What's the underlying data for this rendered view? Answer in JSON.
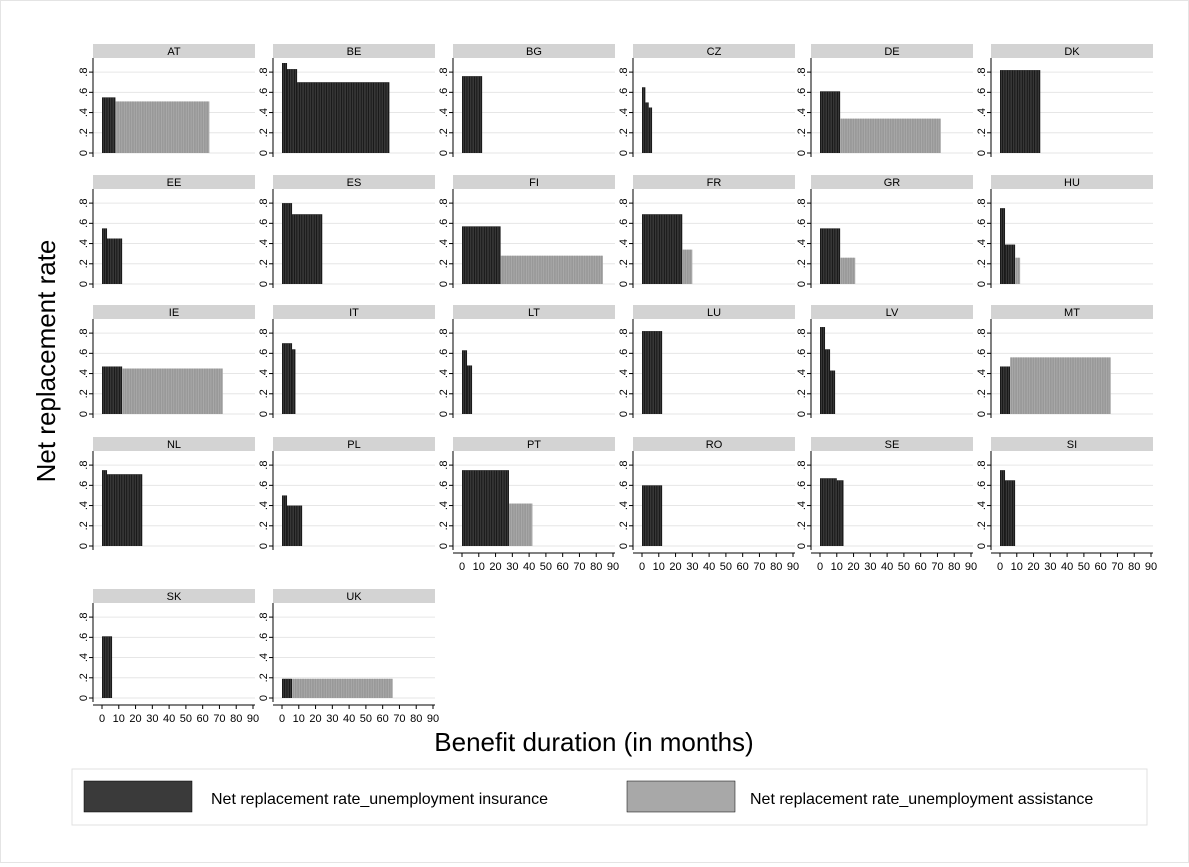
{
  "chart_data": {
    "type": "bar",
    "xlabel": "Benefit duration (in months)",
    "ylabel": "Net replacement rate",
    "xlim": [
      0,
      90
    ],
    "ylim": [
      0,
      0.9
    ],
    "x_ticks": [
      0,
      10,
      20,
      30,
      40,
      50,
      60,
      70,
      80,
      90
    ],
    "y_ticks": [
      0,
      0.2,
      0.4,
      0.6,
      0.8
    ],
    "y_tick_labels": [
      "0",
      ".2",
      ".4",
      ".6",
      ".8"
    ],
    "grid": true,
    "legend_position": "bottom",
    "series": [
      {
        "name": "Net replacement rate_unemployment insurance",
        "color": "#1a1a1a"
      },
      {
        "name": "Net replacement rate_unemployment assistance",
        "color": "#a8a8a8"
      }
    ],
    "panels": [
      {
        "label": "AT",
        "insurance": [
          [
            0,
            8,
            0.55
          ]
        ],
        "assistance": [
          [
            8,
            64,
            0.51
          ]
        ]
      },
      {
        "label": "BE",
        "insurance": [
          [
            0,
            3,
            0.89
          ],
          [
            3,
            9,
            0.83
          ],
          [
            9,
            64,
            0.7
          ]
        ],
        "assistance": []
      },
      {
        "label": "BG",
        "insurance": [
          [
            0,
            12,
            0.76
          ]
        ],
        "assistance": []
      },
      {
        "label": "CZ",
        "insurance": [
          [
            0,
            2,
            0.65
          ],
          [
            2,
            4,
            0.5
          ],
          [
            4,
            6,
            0.45
          ]
        ],
        "assistance": []
      },
      {
        "label": "DE",
        "insurance": [
          [
            0,
            12,
            0.61
          ]
        ],
        "assistance": [
          [
            12,
            72,
            0.34
          ]
        ]
      },
      {
        "label": "DK",
        "insurance": [
          [
            0,
            24,
            0.82
          ]
        ],
        "assistance": []
      },
      {
        "label": "EE",
        "insurance": [
          [
            0,
            3,
            0.55
          ],
          [
            3,
            12,
            0.45
          ]
        ],
        "assistance": []
      },
      {
        "label": "ES",
        "insurance": [
          [
            0,
            6,
            0.8
          ],
          [
            6,
            24,
            0.69
          ]
        ],
        "assistance": []
      },
      {
        "label": "FI",
        "insurance": [
          [
            0,
            23,
            0.57
          ]
        ],
        "assistance": [
          [
            23,
            84,
            0.28
          ]
        ]
      },
      {
        "label": "FR",
        "insurance": [
          [
            0,
            24,
            0.69
          ]
        ],
        "assistance": [
          [
            24,
            30,
            0.34
          ]
        ]
      },
      {
        "label": "GR",
        "insurance": [
          [
            0,
            12,
            0.55
          ]
        ],
        "assistance": [
          [
            12,
            21,
            0.26
          ]
        ]
      },
      {
        "label": "HU",
        "insurance": [
          [
            0,
            3,
            0.75
          ],
          [
            3,
            9,
            0.39
          ]
        ],
        "assistance": [
          [
            9,
            12,
            0.26
          ]
        ]
      },
      {
        "label": "IE",
        "insurance": [
          [
            0,
            12,
            0.47
          ]
        ],
        "assistance": [
          [
            12,
            72,
            0.45
          ]
        ]
      },
      {
        "label": "IT",
        "insurance": [
          [
            0,
            6,
            0.7
          ],
          [
            6,
            8,
            0.64
          ]
        ],
        "assistance": []
      },
      {
        "label": "LT",
        "insurance": [
          [
            0,
            3,
            0.63
          ],
          [
            3,
            6,
            0.48
          ]
        ],
        "assistance": []
      },
      {
        "label": "LU",
        "insurance": [
          [
            0,
            12,
            0.82
          ]
        ],
        "assistance": []
      },
      {
        "label": "LV",
        "insurance": [
          [
            0,
            3,
            0.86
          ],
          [
            3,
            6,
            0.64
          ],
          [
            6,
            9,
            0.43
          ]
        ],
        "assistance": []
      },
      {
        "label": "MT",
        "insurance": [
          [
            0,
            6,
            0.47
          ]
        ],
        "assistance": [
          [
            6,
            66,
            0.56
          ]
        ]
      },
      {
        "label": "NL",
        "insurance": [
          [
            0,
            3,
            0.75
          ],
          [
            3,
            24,
            0.71
          ]
        ],
        "assistance": []
      },
      {
        "label": "PL",
        "insurance": [
          [
            0,
            3,
            0.5
          ],
          [
            3,
            12,
            0.4
          ]
        ],
        "assistance": []
      },
      {
        "label": "PT",
        "insurance": [
          [
            0,
            28,
            0.75
          ]
        ],
        "assistance": [
          [
            28,
            42,
            0.42
          ]
        ]
      },
      {
        "label": "RO",
        "insurance": [
          [
            0,
            12,
            0.6
          ]
        ],
        "assistance": []
      },
      {
        "label": "SE",
        "insurance": [
          [
            0,
            10,
            0.67
          ],
          [
            10,
            14,
            0.65
          ]
        ],
        "assistance": []
      },
      {
        "label": "SI",
        "insurance": [
          [
            0,
            3,
            0.75
          ],
          [
            3,
            9,
            0.65
          ]
        ],
        "assistance": []
      },
      {
        "label": "SK",
        "insurance": [
          [
            0,
            6,
            0.61
          ]
        ],
        "assistance": []
      },
      {
        "label": "UK",
        "insurance": [
          [
            0,
            6,
            0.19
          ]
        ],
        "assistance": [
          [
            6,
            66,
            0.19
          ]
        ]
      }
    ]
  }
}
